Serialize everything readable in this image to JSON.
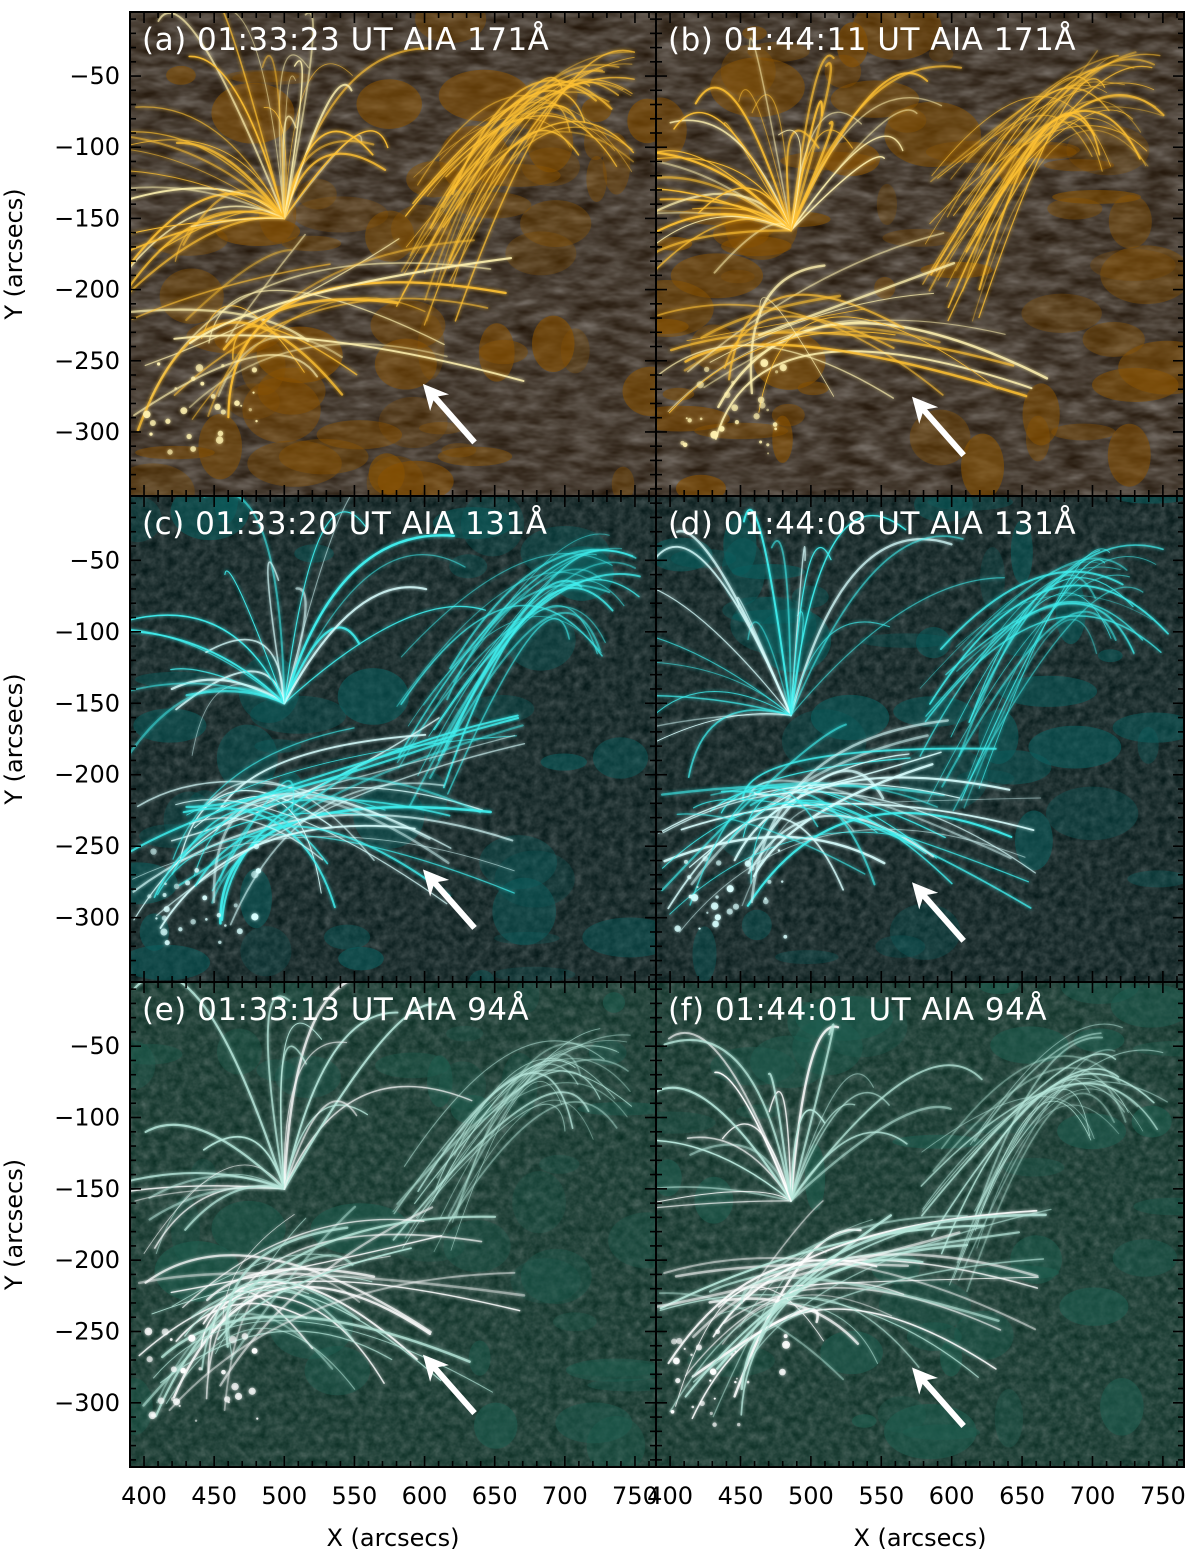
{
  "figure": {
    "colors": {
      "171": {
        "dark": "#1a0d00",
        "mid": "#8a5200",
        "bright": "#ffc233",
        "core": "#fff2b0"
      },
      "131": {
        "dark": "#001414",
        "mid": "#0a5e5e",
        "bright": "#40f0f0",
        "core": "#d8ffff"
      },
      "94": {
        "dark": "#062a20",
        "mid": "#1e5e50",
        "bright": "#b8e8dc",
        "core": "#ffffff"
      },
      "arrow": "#ffffff"
    },
    "panels": [
      {
        "id": "a",
        "label": "(a) 01:33:23 UT AIA 171Å",
        "channel": "171"
      },
      {
        "id": "b",
        "label": "(b) 01:44:11 UT AIA 171Å",
        "channel": "171"
      },
      {
        "id": "c",
        "label": "(c) 01:33:20 UT AIA 131Å",
        "channel": "131"
      },
      {
        "id": "d",
        "label": "(d) 01:44:08 UT AIA 131Å",
        "channel": "131"
      },
      {
        "id": "e",
        "label": "(e) 01:33:13 UT AIA 94Å",
        "channel": "94"
      },
      {
        "id": "f",
        "label": "(f) 01:44:01 UT AIA 94Å",
        "channel": "94"
      }
    ],
    "x_axis": {
      "title": "X (arcsecs)",
      "ticks": [
        "400",
        "450",
        "500",
        "550",
        "600",
        "650",
        "700",
        "750"
      ],
      "range": [
        390,
        765
      ]
    },
    "y_axis": {
      "title": "Y (arcsecs)",
      "ticks": [
        "-50",
        "-100",
        "-150",
        "-200",
        "-250",
        "-300"
      ],
      "range": [
        -345,
        -5
      ]
    },
    "arrow_tips": [
      {
        "panel": "a",
        "x": 600,
        "y": -268
      },
      {
        "panel": "b",
        "x": 573,
        "y": -277
      },
      {
        "panel": "c",
        "x": 600,
        "y": -268
      },
      {
        "panel": "d",
        "x": 573,
        "y": -277
      },
      {
        "panel": "e",
        "x": 600,
        "y": -268
      },
      {
        "panel": "f",
        "x": 573,
        "y": -277
      }
    ]
  }
}
